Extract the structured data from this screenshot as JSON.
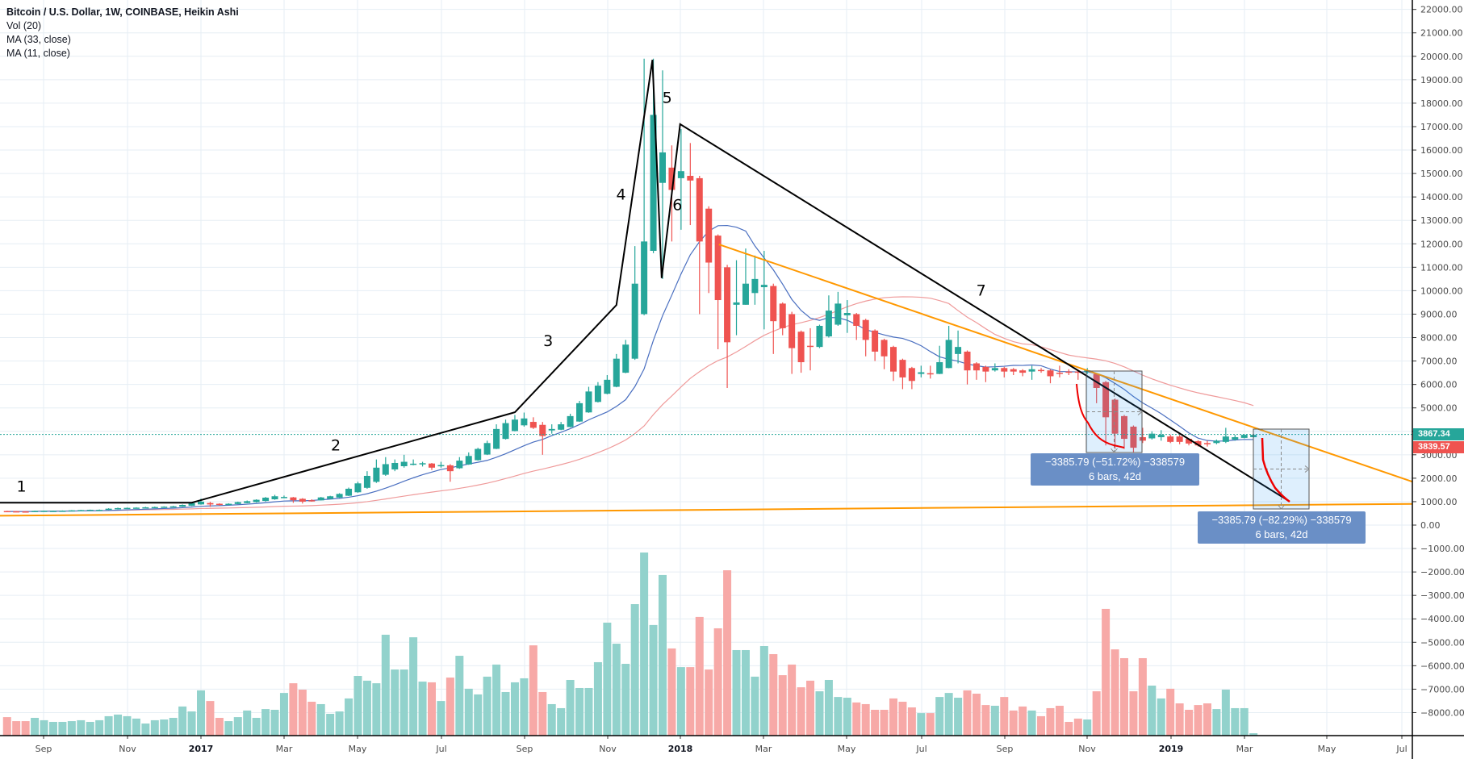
{
  "legend": {
    "title": "Bitcoin / U.S. Dollar, 1W, COINBASE, Heikin Ashi",
    "vol": "Vol (20)",
    "ma33": "MA (33, close)",
    "ma11": "MA (11, close)"
  },
  "price_tags": {
    "last": "3867.34",
    "ha_close": "3839.57"
  },
  "measurements": [
    {
      "line1": "−3385.79 (−51.72%) −338579",
      "line2": "6 bars, 42d"
    },
    {
      "line1": "−3385.79 (−82.29%) −338579",
      "line2": "6 bars, 42d"
    }
  ],
  "wave_labels": [
    "1",
    "2",
    "3",
    "4",
    "5",
    "6",
    "7"
  ],
  "colors": {
    "up": "#26a69a",
    "down": "#ef5350",
    "ma11": "#4a6fc0",
    "ma33": "#ef9a9a",
    "trendline": "#ff9800",
    "wave": "#000000",
    "measure_fill": "#dcebfb",
    "measure_label": "#6a8fc6"
  },
  "chart_data": {
    "type": "candlestick",
    "symbol": "Bitcoin / U.S. Dollar",
    "interval": "1W",
    "exchange": "COINBASE",
    "style": "Heikin Ashi",
    "ylim": [
      -8000,
      22000
    ],
    "grid": true,
    "y_ticks": [
      "22000.00",
      "21000.00",
      "20000.00",
      "19000.00",
      "18000.00",
      "17000.00",
      "16000.00",
      "15000.00",
      "14000.00",
      "13000.00",
      "12000.00",
      "11000.00",
      "10000.00",
      "9000.00",
      "8000.00",
      "7000.00",
      "6000.00",
      "5000.00",
      "4000.00",
      "3000.00",
      "2000.00",
      "1000.00",
      "0.00",
      "−1000.00",
      "−2000.00",
      "−3000.00",
      "−4000.00",
      "−5000.00",
      "−6000.00",
      "−7000.00",
      "−8000.00"
    ],
    "x_ticks": [
      {
        "label": "Sep",
        "year": false
      },
      {
        "label": "Nov",
        "year": false
      },
      {
        "label": "2017",
        "year": true
      },
      {
        "label": "Mar",
        "year": false
      },
      {
        "label": "May",
        "year": false
      },
      {
        "label": "Jul",
        "year": false
      },
      {
        "label": "Sep",
        "year": false
      },
      {
        "label": "Nov",
        "year": false
      },
      {
        "label": "2018",
        "year": true
      },
      {
        "label": "Mar",
        "year": false
      },
      {
        "label": "May",
        "year": false
      },
      {
        "label": "Jul",
        "year": false
      },
      {
        "label": "Sep",
        "year": false
      },
      {
        "label": "Nov",
        "year": false
      },
      {
        "label": "2019",
        "year": true
      },
      {
        "label": "Mar",
        "year": false
      },
      {
        "label": "May",
        "year": false
      },
      {
        "label": "Jul",
        "year": false
      }
    ],
    "ohlc_fields": [
      "open",
      "high",
      "low",
      "close"
    ],
    "ohlc": [
      [
        600,
        610,
        570,
        580
      ],
      [
        590,
        600,
        565,
        578
      ],
      [
        584,
        595,
        570,
        580
      ],
      [
        582,
        615,
        578,
        605
      ],
      [
        594,
        620,
        588,
        610
      ],
      [
        602,
        620,
        595,
        608
      ],
      [
        605,
        625,
        600,
        615
      ],
      [
        610,
        640,
        605,
        630
      ],
      [
        620,
        650,
        612,
        640
      ],
      [
        630,
        660,
        625,
        652
      ],
      [
        641,
        665,
        630,
        650
      ],
      [
        646,
        720,
        640,
        700
      ],
      [
        673,
        745,
        665,
        725
      ],
      [
        699,
        750,
        690,
        735
      ],
      [
        717,
        760,
        705,
        745
      ],
      [
        731,
        780,
        720,
        760
      ],
      [
        746,
        790,
        735,
        770
      ],
      [
        758,
        800,
        748,
        785
      ],
      [
        772,
        820,
        762,
        800
      ],
      [
        786,
        880,
        780,
        860
      ],
      [
        823,
        980,
        815,
        940
      ],
      [
        882,
        1130,
        870,
        1000
      ],
      [
        941,
        990,
        780,
        880
      ],
      [
        910,
        930,
        830,
        870
      ],
      [
        890,
        930,
        860,
        910
      ],
      [
        900,
        1000,
        890,
        980
      ],
      [
        940,
        1050,
        930,
        1020
      ],
      [
        980,
        1100,
        960,
        1080
      ],
      [
        1030,
        1200,
        1000,
        1170
      ],
      [
        1100,
        1290,
        1080,
        1230
      ],
      [
        1165,
        1260,
        1150,
        1200
      ],
      [
        1182,
        1200,
        950,
        1060
      ],
      [
        1121,
        1150,
        920,
        1000
      ],
      [
        1060,
        1100,
        1000,
        1050
      ],
      [
        1055,
        1200,
        1050,
        1180
      ],
      [
        1118,
        1250,
        1110,
        1230
      ],
      [
        1174,
        1360,
        1160,
        1330
      ],
      [
        1252,
        1600,
        1240,
        1550
      ],
      [
        1401,
        1850,
        1380,
        1780
      ],
      [
        1590,
        2300,
        1550,
        2100
      ],
      [
        1845,
        2800,
        1800,
        2450
      ],
      [
        2148,
        2900,
        2100,
        2600
      ],
      [
        2374,
        2800,
        2300,
        2650
      ],
      [
        2512,
        3000,
        2450,
        2700
      ],
      [
        2606,
        2800,
        2550,
        2620
      ],
      [
        2613,
        2700,
        2500,
        2640
      ],
      [
        2626,
        2650,
        2350,
        2450
      ],
      [
        2538,
        2700,
        2450,
        2560
      ],
      [
        2549,
        2600,
        1850,
        2300
      ],
      [
        2425,
        2900,
        2400,
        2750
      ],
      [
        2587,
        3100,
        2570,
        2950
      ],
      [
        2768,
        3300,
        2750,
        3250
      ],
      [
        3009,
        3600,
        2990,
        3500
      ],
      [
        3254,
        4300,
        3240,
        4100
      ],
      [
        3677,
        4500,
        3650,
        4350
      ],
      [
        4013,
        4700,
        4000,
        4500
      ],
      [
        4256,
        4800,
        4200,
        4550
      ],
      [
        4403,
        4600,
        4100,
        4150
      ],
      [
        4276,
        4400,
        3000,
        3800
      ],
      [
        4038,
        4300,
        3900,
        4100
      ],
      [
        4069,
        4400,
        4050,
        4300
      ],
      [
        4185,
        4750,
        4170,
        4650
      ],
      [
        4417,
        5300,
        4400,
        5200
      ],
      [
        4808,
        5900,
        4790,
        5700
      ],
      [
        5254,
        6100,
        5230,
        5950
      ],
      [
        5602,
        6400,
        5580,
        6200
      ],
      [
        5901,
        7300,
        5880,
        7100
      ],
      [
        6500,
        7900,
        6480,
        7700
      ],
      [
        7100,
        11900,
        7050,
        10300
      ],
      [
        9000,
        19900,
        8950,
        12100
      ],
      [
        11700,
        19900,
        11600,
        17500
      ],
      [
        14600,
        19400,
        10500,
        15900
      ],
      [
        15250,
        16200,
        12100,
        14300
      ],
      [
        14800,
        16900,
        12600,
        15100
      ],
      [
        14900,
        16300,
        12800,
        14700
      ],
      [
        14800,
        14900,
        9000,
        12100
      ],
      [
        13500,
        13600,
        9900,
        11200
      ],
      [
        12350,
        12400,
        7500,
        9600
      ],
      [
        11000,
        11100,
        5850,
        7800
      ],
      [
        9400,
        11300,
        8100,
        9500
      ],
      [
        9400,
        11800,
        9400,
        10300
      ],
      [
        9900,
        11500,
        9400,
        10500
      ],
      [
        10150,
        11700,
        8350,
        10250
      ],
      [
        10200,
        10300,
        7300,
        8700
      ],
      [
        9450,
        9500,
        8100,
        8400
      ],
      [
        9000,
        9100,
        6450,
        7550
      ],
      [
        8250,
        8300,
        6500,
        6950
      ],
      [
        7650,
        8400,
        6600,
        7600
      ],
      [
        7600,
        8550,
        7550,
        8500
      ],
      [
        8050,
        9800,
        8000,
        9150
      ],
      [
        8550,
        9950,
        8500,
        9450
      ],
      [
        8950,
        9600,
        8200,
        9050
      ],
      [
        9000,
        9050,
        7900,
        8500
      ],
      [
        8750,
        8800,
        7200,
        7900
      ],
      [
        8300,
        8350,
        7000,
        7400
      ],
      [
        7900,
        7950,
        6650,
        7200
      ],
      [
        7600,
        7650,
        6150,
        6550
      ],
      [
        7050,
        7100,
        5800,
        6300
      ],
      [
        6700,
        6750,
        5800,
        6150
      ],
      [
        6450,
        6800,
        6300,
        6520
      ],
      [
        6480,
        6800,
        6250,
        6430
      ],
      [
        6450,
        7650,
        6440,
        6950
      ],
      [
        6700,
        8500,
        6690,
        7900
      ],
      [
        7300,
        8300,
        6900,
        7600
      ],
      [
        7400,
        7450,
        6000,
        6600
      ],
      [
        6900,
        6950,
        6200,
        6600
      ],
      [
        6750,
        6800,
        6100,
        6550
      ],
      [
        6600,
        6900,
        6550,
        6700
      ],
      [
        6700,
        6750,
        6300,
        6550
      ],
      [
        6650,
        6700,
        6400,
        6550
      ],
      [
        6600,
        6650,
        6350,
        6500
      ],
      [
        6550,
        6800,
        6200,
        6650
      ],
      [
        6620,
        6700,
        6500,
        6580
      ],
      [
        6600,
        6650,
        6050,
        6350
      ],
      [
        6500,
        6800,
        6300,
        6450
      ],
      [
        6550,
        6650,
        6400,
        6520
      ],
      [
        6550,
        6600,
        6200,
        6500
      ],
      [
        6520,
        6700,
        6450,
        6600
      ],
      [
        6450,
        6480,
        5200,
        5850
      ],
      [
        6100,
        6150,
        3400,
        4600
      ],
      [
        5350,
        5400,
        3250,
        3900
      ],
      [
        4650,
        4700,
        3250,
        3680
      ],
      [
        4200,
        4250,
        3100,
        3300
      ],
      [
        3750,
        4150,
        3500,
        3600
      ],
      [
        3700,
        4000,
        3650,
        3900
      ],
      [
        3750,
        4050,
        3600,
        3850
      ],
      [
        3780,
        3850,
        3500,
        3550
      ],
      [
        3780,
        3850,
        3450,
        3550
      ],
      [
        3680,
        3700,
        3400,
        3480
      ],
      [
        3580,
        3620,
        3350,
        3400
      ],
      [
        3500,
        3600,
        3350,
        3480
      ],
      [
        3500,
        3650,
        3450,
        3600
      ],
      [
        3550,
        4150,
        3500,
        3780
      ],
      [
        3650,
        3850,
        3600,
        3750
      ],
      [
        3720,
        3880,
        3700,
        3850
      ],
      [
        3750,
        3900,
        3720,
        3850
      ]
    ],
    "volume_relative": [
      10.1,
      7.9,
      7.9,
      9.7,
      8.4,
      7.5,
      7.5,
      7.9,
      8.4,
      7.5,
      8.4,
      10.6,
      11.5,
      10.6,
      9.3,
      6.6,
      8.4,
      8.8,
      9.7,
      15.9,
      13.2,
      24.7,
      18.9,
      9.7,
      7.9,
      10.1,
      13.7,
      9.7,
      14.5,
      14.1,
      23.3,
      28.6,
      25.1,
      18.5,
      17.2,
      11.9,
      13.2,
      20.3,
      32.6,
      30.0,
      28.6,
      55.1,
      36.1,
      36.1,
      53.7,
      29.5,
      29.1,
      18.9,
      31.7,
      43.6,
      25.6,
      22.5,
      32.2,
      38.8,
      23.8,
      29.1,
      31.3,
      49.3,
      23.8,
      17.2,
      15.0,
      30.4,
      26.0,
      26.0,
      40.1,
      61.7,
      50.2,
      39.2,
      71.8,
      100,
      60.4,
      87.7,
      47.6,
      37.4,
      37.4,
      64.8,
      36.1,
      58.6,
      90.3,
      46.7,
      46.7,
      32.2,
      48.9,
      44.5,
      33.0,
      38.8,
      26.4,
      30.0,
      24.2,
      30.4,
      21.1,
      20.7,
      18.1,
      17.2,
      14.1,
      14.1,
      20.3,
      18.5,
      15.4,
      12.3,
      12.3,
      21.1,
      23.3,
      20.7,
      24.7,
      22.9,
      16.7,
      16.3,
      21.1,
      13.7,
      15.9,
      13.7,
      10.6,
      15.0,
      16.3,
      7.5,
      9.3,
      8.8,
      24.2,
      69.2,
      47.1,
      42.3,
      24.2,
      42.3,
      27.3,
      20.3,
      25.6,
      17.6,
      14.1,
      16.7,
      17.6,
      14.5,
      25.1,
      15.0,
      15.0,
      1.3
    ],
    "indicators": [
      "Vol (20)",
      "MA (33, close)",
      "MA (11, close)"
    ],
    "last_price": 3867.34,
    "ha_close": 3839.57
  }
}
